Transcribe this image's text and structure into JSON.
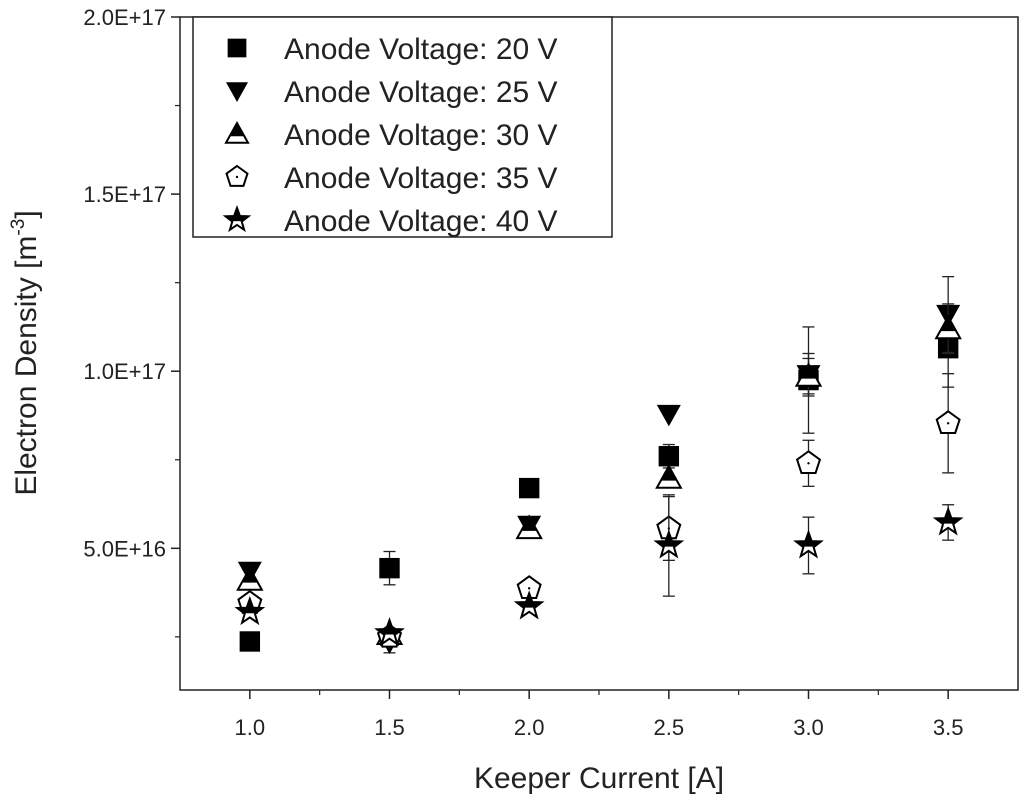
{
  "chart_data": {
    "type": "scatter",
    "title": "",
    "xlabel": "Keeper Current [A]",
    "ylabel": "Electron Density [m",
    "ylabel_sup": "-3",
    "ylabel_end": "]",
    "xlim": [
      0.75,
      3.75
    ],
    "ylim": [
      1e+16,
      2e+17
    ],
    "xticks": [
      1.0,
      1.5,
      2.0,
      2.5,
      3.0,
      3.5
    ],
    "xtick_labels": [
      "1.0",
      "1.5",
      "2.0",
      "2.5",
      "3.0",
      "3.5"
    ],
    "yticks": [
      5e+16,
      1e+17,
      1.5e+17,
      2e+17
    ],
    "ytick_labels": [
      "5.0E+16",
      "1.0E+17",
      "1.5E+17",
      "2.0E+17"
    ],
    "grid": false,
    "legend_position": "top-left",
    "value_unit": "1e16 m^-3",
    "x": [
      1.0,
      1.5,
      2.0,
      2.5,
      3.0,
      3.5
    ],
    "series": [
      {
        "name": "Anode Voltage: 20 V",
        "marker": "square",
        "values": [
          2.37,
          4.44,
          6.7,
          7.6,
          9.75,
          10.65
        ],
        "errors": [
          0,
          0.47,
          0,
          0.33,
          1.5,
          1.1
        ]
      },
      {
        "name": "Anode Voltage: 25 V",
        "marker": "triangle-down",
        "values": [
          4.35,
          2.35,
          5.65,
          8.78,
          9.9,
          11.6
        ],
        "errors": [
          0,
          0.3,
          0,
          0,
          0.6,
          1.07
        ]
      },
      {
        "name": "Anode Voltage: 30 V",
        "marker": "triangle-up-half",
        "values": [
          4.1,
          2.57,
          5.56,
          6.98,
          9.86,
          11.2
        ],
        "errors": [
          0,
          0,
          0,
          0,
          0.5,
          0.7
        ]
      },
      {
        "name": "Anode Voltage: 35 V",
        "marker": "pentagon-open",
        "values": [
          3.45,
          2.5,
          3.87,
          5.56,
          7.4,
          8.53
        ],
        "errors": [
          0,
          0,
          0,
          0.9,
          0.65,
          1.4
        ]
      },
      {
        "name": "Anode Voltage: 40 V",
        "marker": "star-half",
        "values": [
          3.2,
          2.6,
          3.36,
          5.08,
          5.08,
          5.73
        ],
        "errors": [
          0,
          0,
          0,
          1.43,
          0.8,
          0.5
        ]
      }
    ]
  }
}
